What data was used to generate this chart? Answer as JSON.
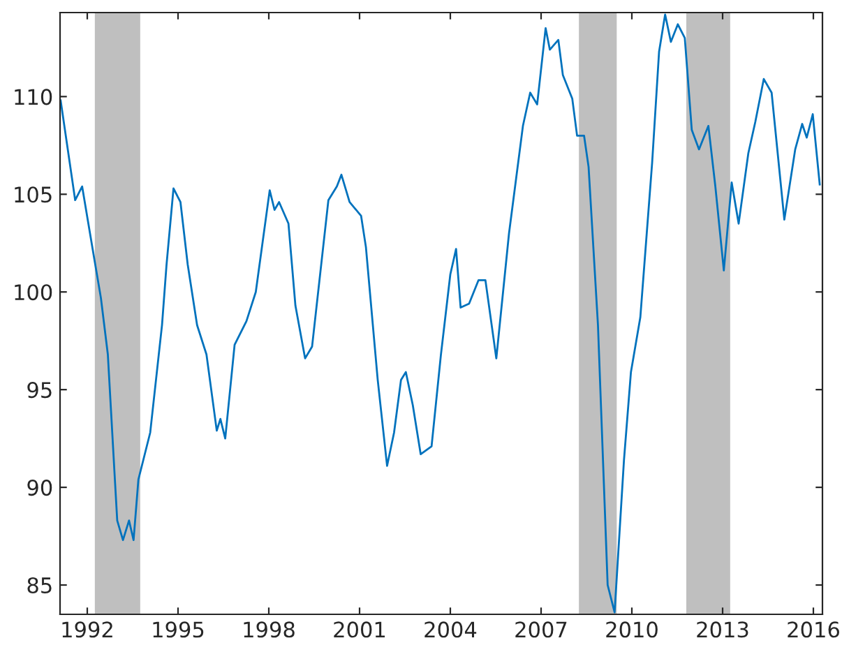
{
  "chart_data": {
    "type": "line",
    "xlim": [
      1991.1,
      2016.3
    ],
    "ylim": [
      83.5,
      114.3
    ],
    "xticks": [
      1992,
      1995,
      1998,
      2001,
      2004,
      2007,
      2010,
      2013,
      2016
    ],
    "yticks": [
      85,
      90,
      95,
      100,
      105,
      110
    ],
    "grid": false,
    "legend": false,
    "series": [
      {
        "color": "#0072bd",
        "x": [
          1991.12,
          1991.6,
          1991.83,
          1992.22,
          1992.45,
          1992.68,
          1992.92,
          1992.99,
          1993.18,
          1993.38,
          1993.53,
          1993.69,
          1994.08,
          1994.47,
          1994.62,
          1994.85,
          1995.08,
          1995.32,
          1995.63,
          1995.94,
          1996.28,
          1996.4,
          1996.56,
          1996.87,
          1997.26,
          1997.57,
          1998.03,
          1998.19,
          1998.34,
          1998.65,
          1998.88,
          1999.2,
          1999.43,
          1999.97,
          2000.25,
          2000.4,
          2000.67,
          2001.05,
          2001.21,
          2001.6,
          2001.91,
          2002.14,
          2002.37,
          2002.53,
          2002.76,
          2003.02,
          2003.38,
          2003.69,
          2004.0,
          2004.19,
          2004.34,
          2004.62,
          2004.93,
          2005.16,
          2005.52,
          2005.94,
          2006.4,
          2006.64,
          2006.87,
          2007.15,
          2007.29,
          2007.57,
          2007.72,
          2008.03,
          2008.19,
          2008.42,
          2008.57,
          2008.88,
          2009.2,
          2009.43,
          2009.74,
          2009.97,
          2010.28,
          2010.67,
          2010.9,
          2011.1,
          2011.29,
          2011.52,
          2011.75,
          2011.98,
          2012.22,
          2012.53,
          2012.76,
          2013.04,
          2013.3,
          2013.53,
          2013.85,
          2014.08,
          2014.36,
          2014.62,
          2015.04,
          2015.4,
          2015.63,
          2015.78,
          2015.98,
          2016.21
        ],
        "values": [
          109.8,
          104.7,
          105.4,
          101.8,
          99.7,
          96.8,
          90.2,
          88.3,
          87.3,
          88.3,
          87.3,
          90.4,
          92.8,
          98.3,
          101.4,
          105.3,
          104.6,
          101.4,
          98.3,
          96.8,
          92.9,
          93.5,
          92.5,
          97.3,
          98.5,
          100.0,
          105.2,
          104.2,
          104.6,
          103.5,
          99.3,
          96.6,
          97.2,
          104.7,
          105.4,
          106.0,
          104.6,
          103.9,
          102.3,
          95.5,
          91.1,
          92.8,
          95.5,
          95.9,
          94.2,
          91.7,
          92.1,
          96.8,
          100.9,
          102.2,
          99.2,
          99.4,
          100.6,
          100.6,
          96.6,
          103.0,
          108.5,
          110.2,
          109.6,
          113.5,
          112.4,
          112.9,
          111.1,
          109.9,
          108.0,
          108.0,
          106.4,
          98.3,
          85.0,
          83.6,
          91.4,
          95.9,
          98.7,
          106.6,
          112.3,
          114.2,
          112.8,
          113.7,
          113.0,
          108.3,
          107.3,
          108.5,
          105.4,
          101.1,
          105.6,
          103.5,
          107.1,
          108.7,
          110.9,
          110.2,
          103.7,
          107.3,
          108.6,
          107.9,
          109.1,
          105.5
        ]
      }
    ],
    "bands": [
      {
        "axis": "x",
        "from": 1992.25,
        "to": 1993.75,
        "color": "#bfbfbf"
      },
      {
        "axis": "x",
        "from": 2008.25,
        "to": 2009.5,
        "color": "#bfbfbf"
      },
      {
        "axis": "x",
        "from": 2011.8,
        "to": 2013.25,
        "color": "#bfbfbf"
      }
    ]
  }
}
